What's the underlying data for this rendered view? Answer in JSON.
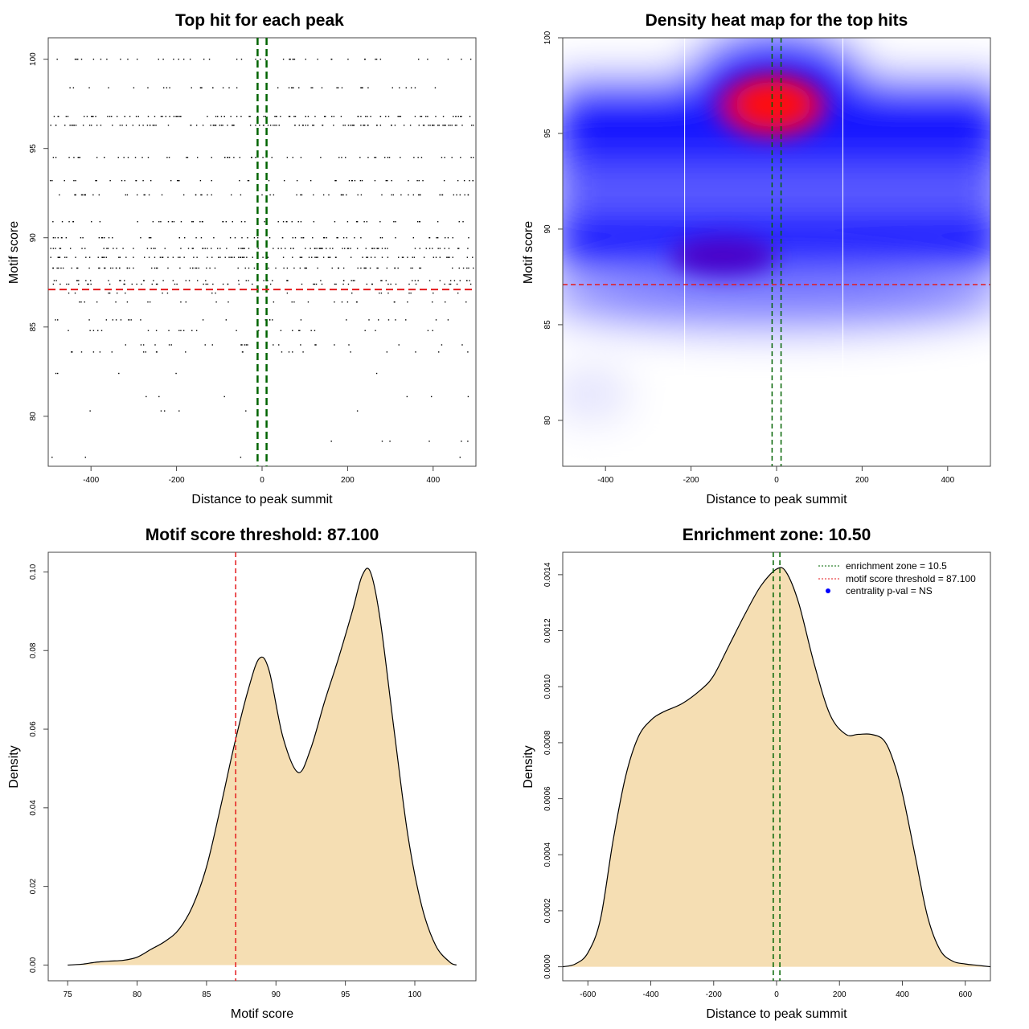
{
  "chart_data": [
    {
      "type": "scatter",
      "title": "Top hit for each peak",
      "xlabel": "Distance to peak summit",
      "ylabel": "Motif score",
      "xlim": [
        -500,
        500
      ],
      "ylim": [
        77.2,
        101.2
      ],
      "xticks": [
        -400,
        -200,
        0,
        200,
        400
      ],
      "yticks": [
        80,
        85,
        90,
        95,
        100
      ],
      "vlines": [
        -10.5,
        10.5
      ],
      "hline": 87.1,
      "score_levels": [
        100,
        98.4,
        96.8,
        96.3,
        94.5,
        93.2,
        92.4,
        90.9,
        90.0,
        89.4,
        88.9,
        88.3,
        87.6,
        87.4,
        86.9,
        86.4,
        85.4,
        84.8,
        84.0,
        83.6,
        82.4,
        81.1,
        80.3,
        78.6,
        77.7
      ],
      "n_points": 1100
    },
    {
      "type": "heatmap",
      "title": "Density heat map for the top hits",
      "xlabel": "Distance to peak summit",
      "ylabel": "Motif score",
      "xlim": [
        -500,
        500
      ],
      "ylim": [
        77.6,
        100
      ],
      "xticks": [
        -400,
        -200,
        0,
        200,
        400
      ],
      "yticks": [
        80,
        85,
        90,
        95,
        100
      ],
      "vlines": [
        -10.5,
        10.5
      ],
      "hline": 87.1,
      "grid_x": [
        -215,
        155
      ],
      "hotspots": [
        {
          "x": 25,
          "y": 96.3,
          "level": "high"
        },
        {
          "x": -100,
          "y": 89,
          "level": "medium"
        },
        {
          "x": 405,
          "y": 89,
          "level": "medium"
        },
        {
          "x": -400,
          "y": 96,
          "level": "medium"
        }
      ]
    },
    {
      "type": "area",
      "title": "Motif score threshold: 87.100",
      "xlabel": "Motif score",
      "ylabel": "Density",
      "xlim": [
        73.6,
        104.4
      ],
      "ylim": [
        -0.004,
        0.105
      ],
      "xticks": [
        75,
        80,
        85,
        90,
        95,
        100
      ],
      "yticks": [
        "0.00",
        "0.02",
        "0.04",
        "0.06",
        "0.08",
        "0.10"
      ],
      "vline": 87.1,
      "x": [
        75,
        76,
        77,
        78,
        79,
        80,
        81,
        82,
        83,
        84,
        85,
        86,
        87,
        88,
        88.8,
        89.5,
        90.5,
        91.6,
        92.5,
        93.5,
        94.5,
        95.5,
        96.2,
        96.8,
        97.5,
        98.5,
        99.5,
        100.5,
        101.5,
        102.5,
        103
      ],
      "y": [
        0,
        0.0002,
        0.0007,
        0.001,
        0.0012,
        0.002,
        0.004,
        0.006,
        0.009,
        0.015,
        0.025,
        0.04,
        0.056,
        0.07,
        0.078,
        0.075,
        0.058,
        0.049,
        0.055,
        0.067,
        0.078,
        0.09,
        0.099,
        0.1,
        0.088,
        0.06,
        0.033,
        0.015,
        0.005,
        0.0008,
        0
      ]
    },
    {
      "type": "area",
      "title": "Enrichment zone: 10.50",
      "xlabel": "Distance to peak summit",
      "ylabel": "Density",
      "xlim": [
        -680,
        680
      ],
      "ylim": [
        -5e-05,
        0.00148
      ],
      "xticks": [
        -600,
        -400,
        -200,
        0,
        200,
        400,
        600
      ],
      "yticks": [
        "0.0000",
        "0.0002",
        "0.0004",
        "0.0006",
        "0.0008",
        "0.0010",
        "0.0012",
        "0.0014"
      ],
      "vlines": [
        -10.5,
        10.5
      ],
      "x": [
        -680,
        -640,
        -600,
        -560,
        -520,
        -480,
        -440,
        -400,
        -360,
        -300,
        -240,
        -200,
        -150,
        -100,
        -50,
        0,
        30,
        70,
        120,
        170,
        220,
        260,
        300,
        340,
        370,
        400,
        440,
        480,
        520,
        560,
        600,
        640,
        680
      ],
      "y": [
        0,
        1e-05,
        5e-05,
        0.00017,
        0.00045,
        0.00068,
        0.00082,
        0.00088,
        0.00091,
        0.00094,
        0.00099,
        0.00104,
        0.00115,
        0.00126,
        0.00136,
        0.00142,
        0.00141,
        0.0013,
        0.00108,
        0.0009,
        0.00083,
        0.00083,
        0.00083,
        0.00081,
        0.00074,
        0.00062,
        0.0004,
        0.00018,
        6e-05,
        2e-05,
        1e-05,
        5e-06,
        0
      ]
    }
  ],
  "legend": {
    "enrichment": "enrichment zone = 10.5",
    "threshold": "motif score threshold = 87.100",
    "centrality": "centrality p-val = NS"
  },
  "colors": {
    "fill": "#f5deb3",
    "green": "#006400",
    "red": "#e41a1c",
    "blue": "#0000ff"
  }
}
